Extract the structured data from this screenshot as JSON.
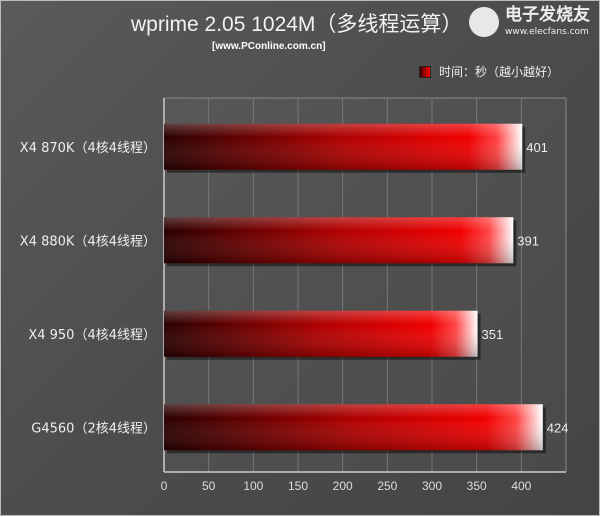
{
  "chart_data": {
    "type": "bar",
    "orientation": "horizontal",
    "title": "wprime 2.05 1024M（多线程运算）",
    "subtitle": "[www.PConline.com.cn]",
    "legend": {
      "label": "时间：秒（越小越好）",
      "placement": "top-right"
    },
    "categories": [
      "X4 870K（4核4线程）",
      "X4 880K（4核4线程）",
      "X4 950（4核4线程）",
      "G4560（2核4线程）"
    ],
    "series": [
      {
        "name": "时间：秒（越小越好）",
        "values": [
          401,
          391,
          351,
          424
        ]
      }
    ],
    "xlim": [
      0,
      450
    ],
    "xticks": [
      0,
      50,
      100,
      150,
      200,
      250,
      300,
      350,
      400
    ],
    "grid": true,
    "colors": {
      "bar_start": "#3a0000",
      "bar_mid": "#e00000",
      "bar_end": "#ffffff",
      "background": "#4e4e4e"
    }
  },
  "watermark": {
    "name": "电子发烧友",
    "url": "www.elecfans.com"
  }
}
